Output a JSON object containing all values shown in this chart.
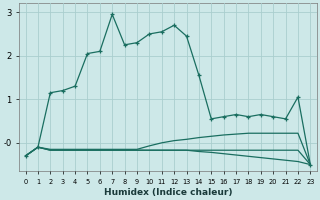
{
  "xlabel": "Humidex (Indice chaleur)",
  "bg_color": "#cde8e8",
  "line_color": "#1a6e60",
  "grid_color": "#aacece",
  "xlim": [
    -0.5,
    23.5
  ],
  "ylim": [
    -0.65,
    3.2
  ],
  "x": [
    0,
    1,
    2,
    3,
    4,
    5,
    6,
    7,
    8,
    9,
    10,
    11,
    12,
    13,
    14,
    15,
    16,
    17,
    18,
    19,
    20,
    21,
    22,
    23
  ],
  "main_y": [
    -0.3,
    -0.1,
    1.15,
    1.2,
    1.3,
    2.05,
    2.1,
    2.95,
    2.25,
    2.3,
    2.5,
    2.55,
    2.7,
    2.45,
    1.55,
    0.55,
    0.6,
    0.65,
    0.6,
    0.65,
    0.6,
    0.55,
    1.05,
    -0.5
  ],
  "low1_y": [
    -0.3,
    -0.1,
    -0.15,
    -0.15,
    -0.15,
    -0.15,
    -0.15,
    -0.15,
    -0.15,
    -0.15,
    -0.07,
    0.0,
    0.05,
    0.08,
    0.12,
    0.15,
    0.18,
    0.2,
    0.22,
    0.22,
    0.22,
    0.22,
    0.22,
    -0.5
  ],
  "low2_y": [
    -0.3,
    -0.1,
    -0.17,
    -0.17,
    -0.17,
    -0.17,
    -0.17,
    -0.17,
    -0.17,
    -0.17,
    -0.17,
    -0.17,
    -0.17,
    -0.17,
    -0.17,
    -0.17,
    -0.17,
    -0.17,
    -0.17,
    -0.17,
    -0.17,
    -0.17,
    -0.17,
    -0.5
  ],
  "low3_y": [
    -0.3,
    -0.1,
    -0.17,
    -0.17,
    -0.17,
    -0.17,
    -0.17,
    -0.17,
    -0.17,
    -0.17,
    -0.17,
    -0.17,
    -0.17,
    -0.17,
    -0.2,
    -0.22,
    -0.25,
    -0.28,
    -0.31,
    -0.34,
    -0.37,
    -0.4,
    -0.43,
    -0.5
  ]
}
